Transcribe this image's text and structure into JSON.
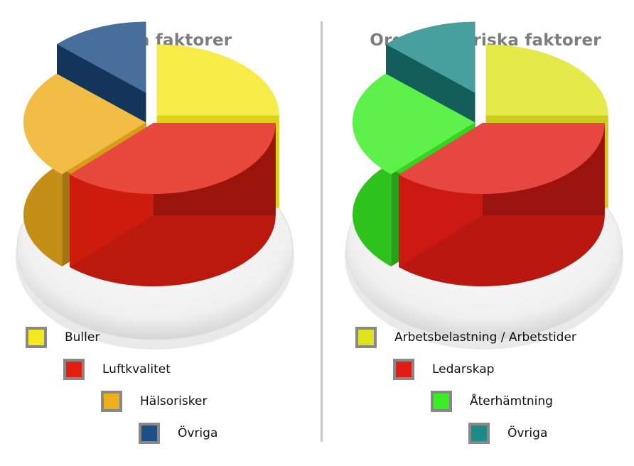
{
  "chart_data": [
    {
      "type": "pie",
      "title": "Fysiska faktorer",
      "categories": [
        "Buller",
        "Luftkvalitet",
        "Hälsorisker",
        "Övriga"
      ],
      "values": [
        25,
        37,
        25,
        13
      ],
      "colors": [
        "#f5e81c",
        "#e41e10",
        "#eeae1c",
        "#1d4e84"
      ],
      "legend": "bottom-left, stepped"
    },
    {
      "type": "pie",
      "title": "Organisatoriska faktorer",
      "categories": [
        "Arbetsbelastning / Arbetstider",
        "Ledarskap",
        "Återhämtning",
        "Övriga"
      ],
      "values": [
        25,
        37,
        25,
        13
      ],
      "colors": [
        "#e0e41e",
        "#e21c14",
        "#38ee22",
        "#1c8a86"
      ],
      "legend": "bottom-left, stepped"
    }
  ]
}
